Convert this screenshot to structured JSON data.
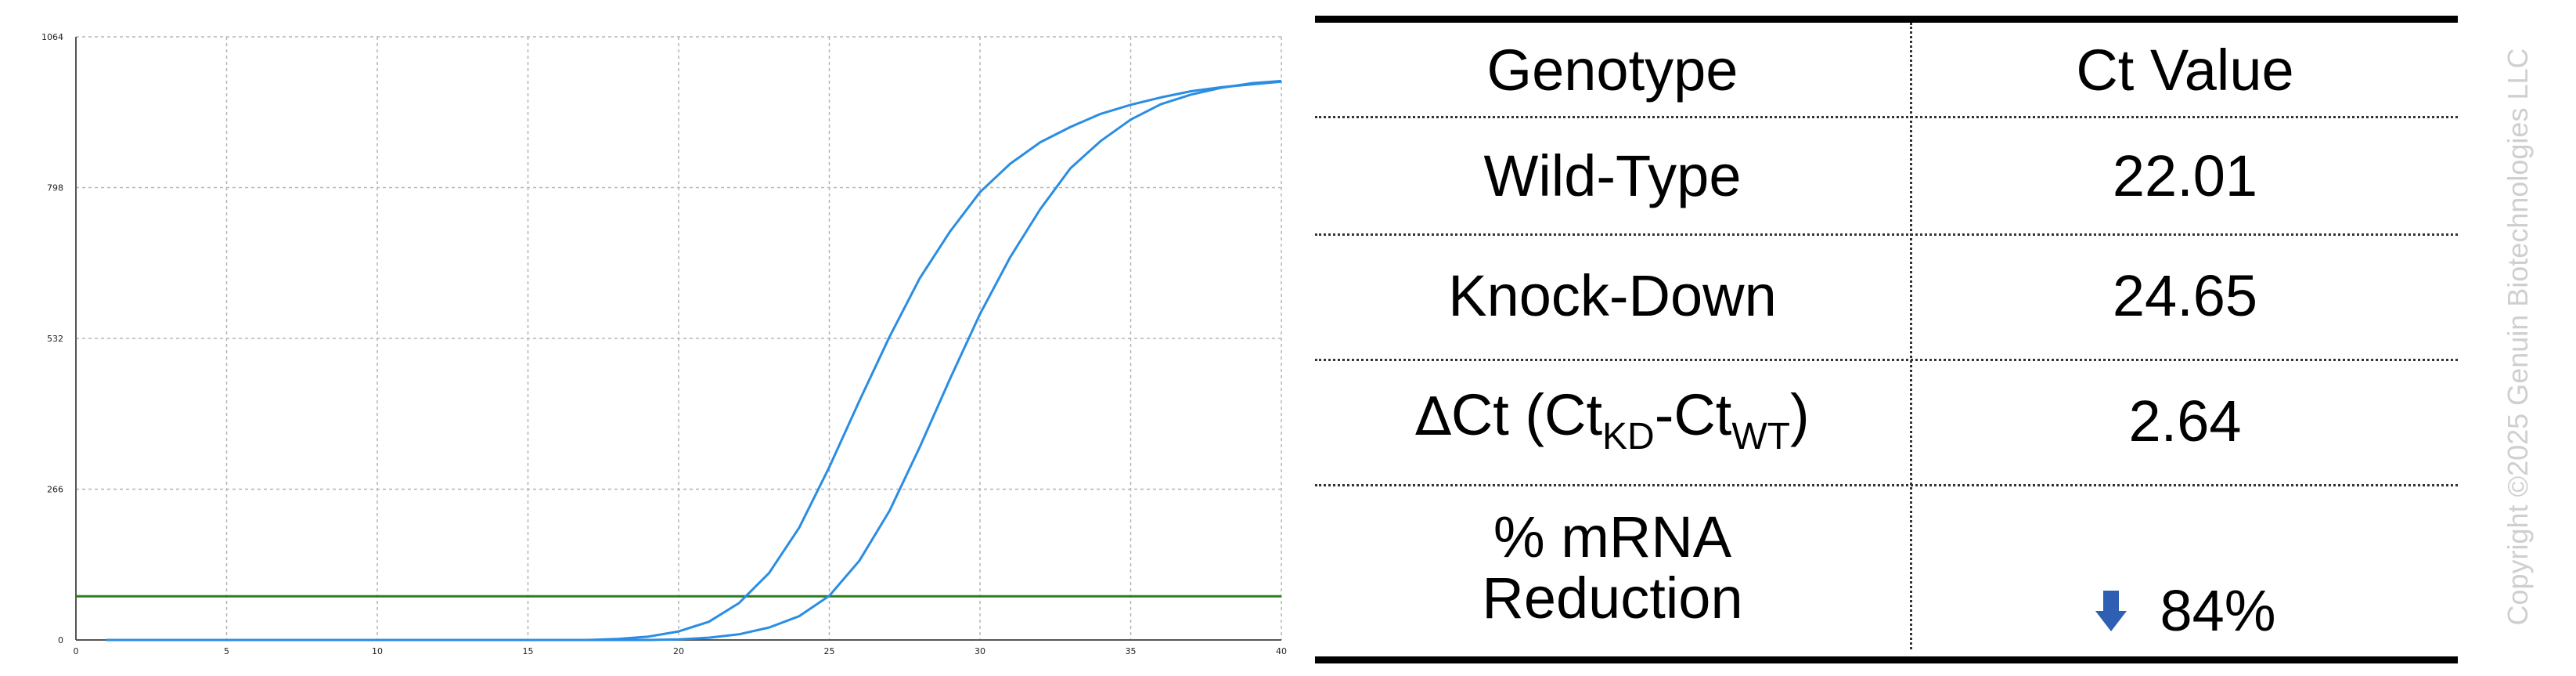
{
  "chart_data": {
    "type": "line",
    "x_ticks": [
      "0",
      "5",
      "10",
      "15",
      "20",
      "25",
      "30",
      "35",
      "40"
    ],
    "y_ticks": [
      "0",
      "266",
      "532",
      "798",
      "1064"
    ],
    "xlim": [
      0,
      40
    ],
    "ylim": [
      0,
      1064
    ],
    "grid": true,
    "threshold": {
      "y": 77,
      "color": "#2e7d1e"
    },
    "series": [
      {
        "color": "#2a8de3",
        "x": [
          1,
          5,
          10,
          15,
          17,
          18,
          19,
          20,
          21,
          22,
          23,
          24,
          25,
          26,
          27,
          28,
          29,
          30,
          31,
          32,
          33,
          34,
          35,
          36,
          37,
          38,
          39,
          40
        ],
        "y": [
          0,
          0,
          0,
          0,
          0,
          2,
          6,
          15,
          32,
          65,
          118,
          198,
          305,
          422,
          535,
          638,
          720,
          790,
          840,
          878,
          905,
          928,
          944,
          957,
          968,
          975,
          980,
          985
        ]
      },
      {
        "color": "#2a8de3",
        "x": [
          1,
          5,
          10,
          15,
          19,
          20,
          21,
          22,
          23,
          24,
          25,
          26,
          27,
          28,
          29,
          30,
          31,
          32,
          33,
          34,
          35,
          36,
          37,
          38,
          39,
          40
        ],
        "y": [
          0,
          0,
          0,
          0,
          0,
          1,
          4,
          10,
          22,
          42,
          78,
          140,
          228,
          340,
          460,
          575,
          675,
          760,
          832,
          880,
          918,
          945,
          962,
          974,
          982,
          986
        ]
      }
    ]
  },
  "table": {
    "header": {
      "col1": "Genotype",
      "col2": "Ct Value"
    },
    "rows": [
      {
        "label": "Wild-Type",
        "value": "22.01"
      },
      {
        "label": "Knock-Down",
        "value": "24.65"
      },
      {
        "label_delta": "∆",
        "label_main": "Ct (Ct",
        "sub_kd": "KD",
        "label_mid": "-Ct",
        "sub_wt": "WT",
        "label_end": ")",
        "value": "2.64"
      },
      {
        "label_line1": "% mRNA",
        "label_line2": "Reduction",
        "value": "84%",
        "arrow_icon": "down-arrow-icon",
        "arrow_color": "#2f5fb3"
      }
    ]
  },
  "copyright": "Copyright ©2025 Genuin Biotechnologies LLC"
}
